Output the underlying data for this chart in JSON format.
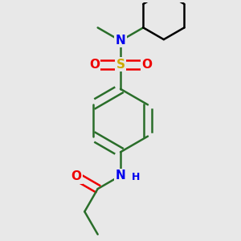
{
  "background_color": "#e8e8e8",
  "atom_colors": {
    "N": "#0000ee",
    "O": "#ee0000",
    "S": "#ccaa00",
    "C": "#000000"
  },
  "bond_color": "#2a6e2a",
  "bond_width": 1.8,
  "figsize": [
    3.0,
    3.0
  ],
  "dpi": 100,
  "xlim": [
    -1.1,
    1.1
  ],
  "ylim": [
    -1.35,
    1.35
  ]
}
